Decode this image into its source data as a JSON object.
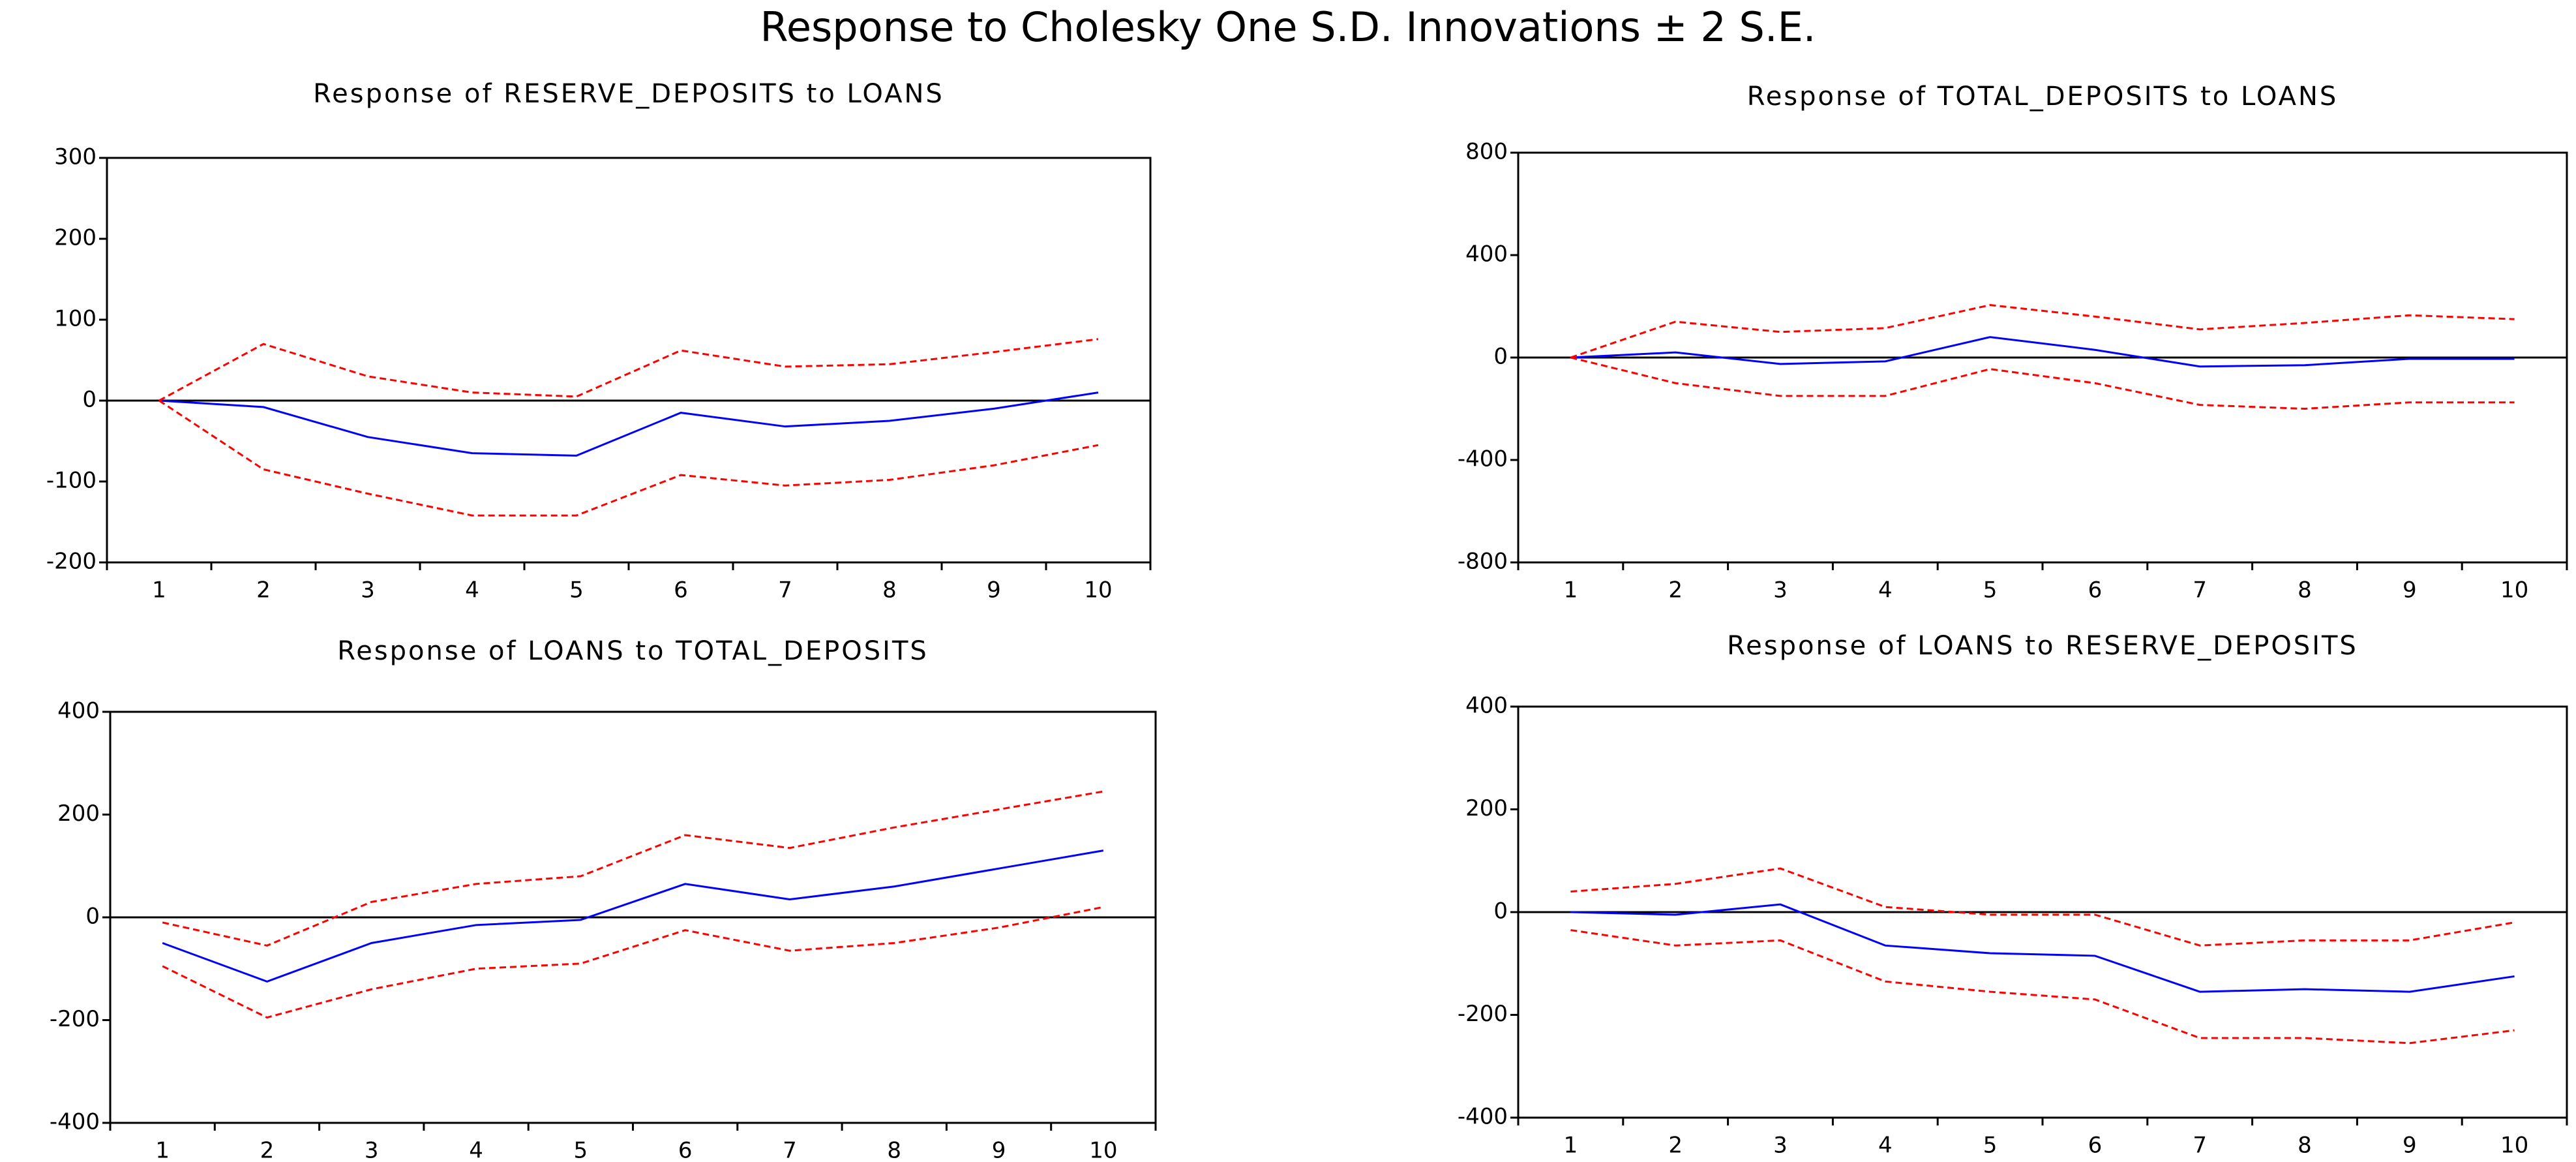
{
  "title": "Response to Cholesky One S.D. Innovations ± 2 S.E.",
  "chart_data": [
    {
      "type": "line",
      "title": "Response of RESERVE_DEPOSITS to LOANS",
      "categories": [
        "1",
        "2",
        "3",
        "4",
        "5",
        "6",
        "7",
        "8",
        "9",
        "10"
      ],
      "ylim": [
        -200,
        300
      ],
      "yticks": [
        -200,
        -100,
        0,
        100,
        200,
        300
      ],
      "zero_line": true,
      "series": [
        {
          "color": "#0000ff",
          "dashed": false,
          "values": [
            0,
            -8,
            -45,
            -65,
            -68,
            -15,
            -32,
            -25,
            -10,
            10
          ]
        },
        {
          "color": "#ff0000",
          "dashed": true,
          "values": [
            0,
            70,
            30,
            10,
            5,
            62,
            42,
            45,
            60,
            76
          ]
        },
        {
          "color": "#ff0000",
          "dashed": true,
          "values": [
            0,
            -85,
            -115,
            -142,
            -142,
            -92,
            -105,
            -98,
            -80,
            -55
          ]
        }
      ]
    },
    {
      "type": "line",
      "title": "Response of TOTAL_DEPOSITS to LOANS",
      "categories": [
        "1",
        "2",
        "3",
        "4",
        "5",
        "6",
        "7",
        "8",
        "9",
        "10"
      ],
      "ylim": [
        -800,
        800
      ],
      "yticks": [
        -800,
        -400,
        0,
        400,
        800
      ],
      "zero_line": true,
      "series": [
        {
          "color": "#0000ff",
          "dashed": false,
          "values": [
            0,
            20,
            -25,
            -15,
            80,
            30,
            -35,
            -30,
            -5,
            -5
          ]
        },
        {
          "color": "#ff0000",
          "dashed": true,
          "values": [
            0,
            140,
            100,
            115,
            205,
            160,
            110,
            135,
            165,
            150
          ]
        },
        {
          "color": "#ff0000",
          "dashed": true,
          "values": [
            0,
            -100,
            -150,
            -150,
            -45,
            -100,
            -185,
            -200,
            -175,
            -175
          ]
        }
      ]
    },
    {
      "type": "line",
      "title": "Response of LOANS to TOTAL_DEPOSITS",
      "categories": [
        "1",
        "2",
        "3",
        "4",
        "5",
        "6",
        "7",
        "8",
        "9",
        "10"
      ],
      "ylim": [
        -400,
        400
      ],
      "yticks": [
        -400,
        -200,
        0,
        200,
        400
      ],
      "zero_line": true,
      "series": [
        {
          "color": "#0000ff",
          "dashed": false,
          "values": [
            -50,
            -125,
            -50,
            -15,
            -5,
            65,
            35,
            60,
            95,
            130
          ]
        },
        {
          "color": "#ff0000",
          "dashed": true,
          "values": [
            -10,
            -55,
            30,
            65,
            80,
            160,
            135,
            175,
            210,
            245
          ]
        },
        {
          "color": "#ff0000",
          "dashed": true,
          "values": [
            -95,
            -195,
            -140,
            -100,
            -90,
            -25,
            -65,
            -50,
            -20,
            20
          ]
        }
      ]
    },
    {
      "type": "line",
      "title": "Response of LOANS to RESERVE_DEPOSITS",
      "categories": [
        "1",
        "2",
        "3",
        "4",
        "5",
        "6",
        "7",
        "8",
        "9",
        "10"
      ],
      "ylim": [
        -400,
        400
      ],
      "yticks": [
        -400,
        -200,
        0,
        200,
        400
      ],
      "zero_line": true,
      "series": [
        {
          "color": "#0000ff",
          "dashed": false,
          "values": [
            0,
            -5,
            15,
            -65,
            -80,
            -85,
            -155,
            -150,
            -155,
            -125
          ]
        },
        {
          "color": "#ff0000",
          "dashed": true,
          "values": [
            40,
            55,
            85,
            10,
            -5,
            -5,
            -65,
            -55,
            -55,
            -20
          ]
        },
        {
          "color": "#ff0000",
          "dashed": true,
          "values": [
            -35,
            -65,
            -55,
            -135,
            -155,
            -170,
            -245,
            -245,
            -255,
            -230
          ]
        }
      ]
    }
  ]
}
